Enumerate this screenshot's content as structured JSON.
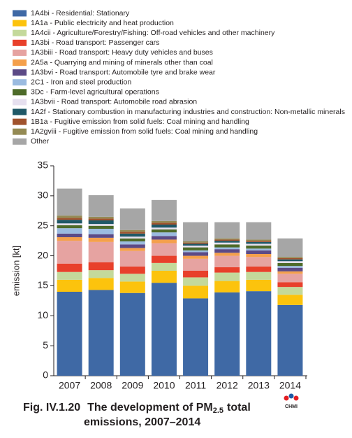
{
  "chart_data": {
    "type": "stacked_bar",
    "figure_label": "Fig. IV.1.20",
    "title": {
      "text": "The development of PM",
      "subscript": "2.5",
      "text_after": "total",
      "line2": "emissions, 2007–2014"
    },
    "logo_text": "CHMI",
    "y_label": "emission [kt]",
    "categories": [
      "2007",
      "2008",
      "2009",
      "2010",
      "2011",
      "2012",
      "2013",
      "2014"
    ],
    "ylim": [
      0,
      35
    ],
    "yticks": [
      0,
      5,
      10,
      15,
      20,
      25,
      30,
      35
    ],
    "grid": false,
    "legend": "top",
    "series": [
      {
        "name": "1A4bi - Residential: Stationary",
        "color": "#3f69a5",
        "values": [
          14.0,
          14.3,
          13.8,
          15.5,
          12.9,
          13.9,
          14.1,
          11.8
        ]
      },
      {
        "name": "1A1a - Public electricity and heat production",
        "color": "#fcc30d",
        "values": [
          2.0,
          2.0,
          1.9,
          2.0,
          2.1,
          1.9,
          1.9,
          1.7
        ]
      },
      {
        "name": "1A4cii - Agriculture/Forestry/Fishing: Off-road vehicles and other machinery",
        "color": "#c4d99b",
        "values": [
          1.3,
          1.3,
          1.3,
          1.3,
          1.4,
          1.4,
          1.3,
          1.3
        ]
      },
      {
        "name": "1A3bi - Road transport: Passenger cars",
        "color": "#e8402b",
        "values": [
          1.4,
          1.3,
          1.2,
          1.2,
          1.1,
          0.9,
          0.9,
          0.8
        ]
      },
      {
        "name": "1A3biii - Road transport: Heavy duty vehicles and buses",
        "color": "#e6a3a1",
        "values": [
          3.8,
          3.4,
          2.6,
          2.1,
          2.0,
          1.9,
          1.6,
          1.4
        ]
      },
      {
        "name": "2A5a - Quarrying and mining of minerals other than coal",
        "color": "#f4a04c",
        "values": [
          0.6,
          0.7,
          0.5,
          0.6,
          0.5,
          0.5,
          0.5,
          0.4
        ]
      },
      {
        "name": "1A3bvi - Road transport: Automobile tyre and brake wear",
        "color": "#5c4a86",
        "values": [
          0.6,
          0.6,
          0.6,
          0.6,
          0.6,
          0.6,
          0.6,
          0.6
        ]
      },
      {
        "name": "2C1 - Iron and steel production",
        "color": "#9bbbe0",
        "values": [
          0.9,
          0.9,
          0.5,
          0.6,
          0.3,
          0.3,
          0.3,
          0.3
        ]
      },
      {
        "name": "3Dc - Farm-level agricultural operations",
        "color": "#4e6b2a",
        "values": [
          0.5,
          0.5,
          0.5,
          0.5,
          0.5,
          0.5,
          0.5,
          0.5
        ]
      },
      {
        "name": "1A3bvii - Road transport: Automobile road abrasion",
        "color": "#e6e0ef",
        "values": [
          0.3,
          0.3,
          0.3,
          0.3,
          0.3,
          0.3,
          0.3,
          0.3
        ]
      },
      {
        "name": "1A2f - Stationary combustion in manufacturing industries and construction: Non-metallic minerals",
        "color": "#1f5867",
        "values": [
          0.6,
          0.6,
          0.5,
          0.5,
          0.3,
          0.3,
          0.3,
          0.3
        ]
      },
      {
        "name": "1B1a - Fugitive emission from solid fuels: Coal mining and handling",
        "color": "#a0522d",
        "values": [
          0.3,
          0.3,
          0.3,
          0.3,
          0.2,
          0.2,
          0.2,
          0.2
        ]
      },
      {
        "name": "1A2gviii - Fugitive emission from solid fuels: Coal mining and handling",
        "color": "#948a54",
        "values": [
          0.4,
          0.3,
          0.3,
          0.3,
          0.2,
          0.2,
          0.2,
          0.2
        ]
      },
      {
        "name": "Other",
        "color": "#a6a6a6",
        "values": [
          4.5,
          3.6,
          3.6,
          3.5,
          3.2,
          2.7,
          2.9,
          3.1
        ]
      }
    ]
  }
}
